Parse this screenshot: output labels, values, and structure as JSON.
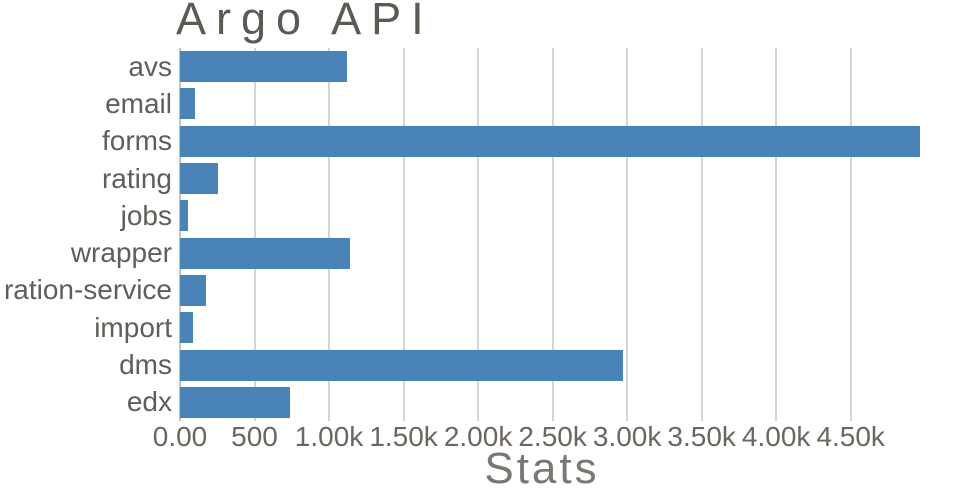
{
  "chart_data": {
    "type": "bar",
    "orientation": "horizontal",
    "title": "Argo API",
    "xlabel": "Stats",
    "categories": [
      "avs",
      "email",
      "forms",
      "rating",
      "jobs",
      "wrapper",
      "ration-service",
      "import",
      "dms",
      "edx"
    ],
    "values": [
      1120,
      100,
      4965,
      255,
      55,
      1140,
      175,
      90,
      2970,
      735
    ],
    "xlim": [
      0,
      4965
    ],
    "xticks": {
      "values": [
        0,
        500,
        1000,
        1500,
        2000,
        2500,
        3000,
        3500,
        4000,
        4500
      ],
      "labels": [
        "0.00",
        "500",
        "1.00k",
        "1.50k",
        "2.00k",
        "2.50k",
        "3.00k",
        "3.50k",
        "4.00k",
        "4.50k"
      ]
    },
    "grid": true,
    "legend": "none",
    "bar_color": "#4a83b5",
    "gridline_color": "#d4d4d4",
    "title_color": "#5d5953",
    "label_color": "#615d58",
    "tick_color": "#6b6660"
  }
}
